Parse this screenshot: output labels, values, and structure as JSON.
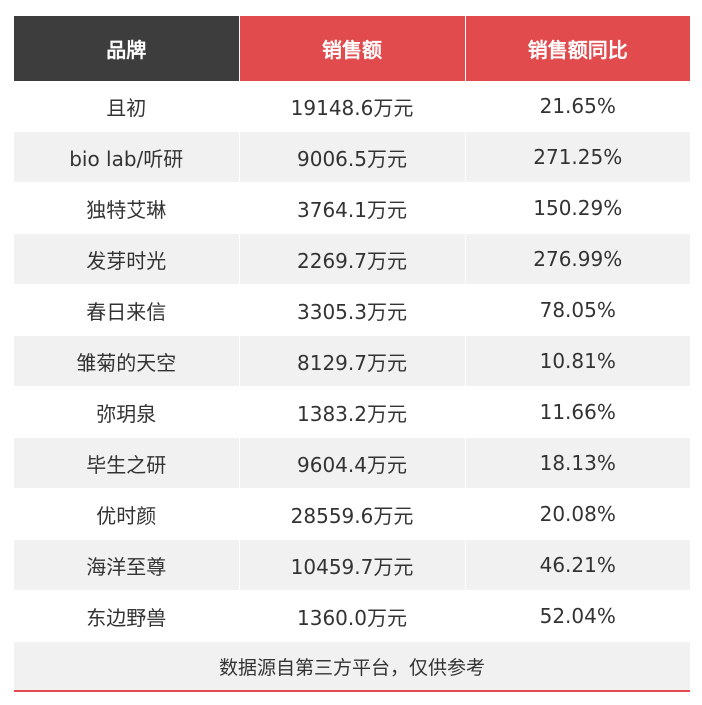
{
  "table": {
    "headers": [
      "品牌",
      "销售额",
      "销售额同比"
    ],
    "rows": [
      [
        "且初",
        "19148.6万元",
        "21.65%"
      ],
      [
        "bio lab/听研",
        "9006.5万元",
        "271.25%"
      ],
      [
        "独特艾琳",
        "3764.1万元",
        "150.29%"
      ],
      [
        "发芽时光",
        "2269.7万元",
        "276.99%"
      ],
      [
        "春日来信",
        "3305.3万元",
        "78.05%"
      ],
      [
        "雏菊的天空",
        "8129.7万元",
        "10.81%"
      ],
      [
        "弥玥泉",
        "1383.2万元",
        "11.66%"
      ],
      [
        "毕生之研",
        "9604.4万元",
        "18.13%"
      ],
      [
        "优时颜",
        "28559.6万元",
        "20.08%"
      ],
      [
        "海洋至尊",
        "10459.7万元",
        "46.21%"
      ],
      [
        "东边野兽",
        "1360.0万元",
        "52.04%"
      ]
    ],
    "footnote": "数据源自第三方平台，仅供参考"
  },
  "colors": {
    "header_dark": "#3d3d3d",
    "header_red": "#e14b4e",
    "row_alt": "#f1f1f1"
  }
}
